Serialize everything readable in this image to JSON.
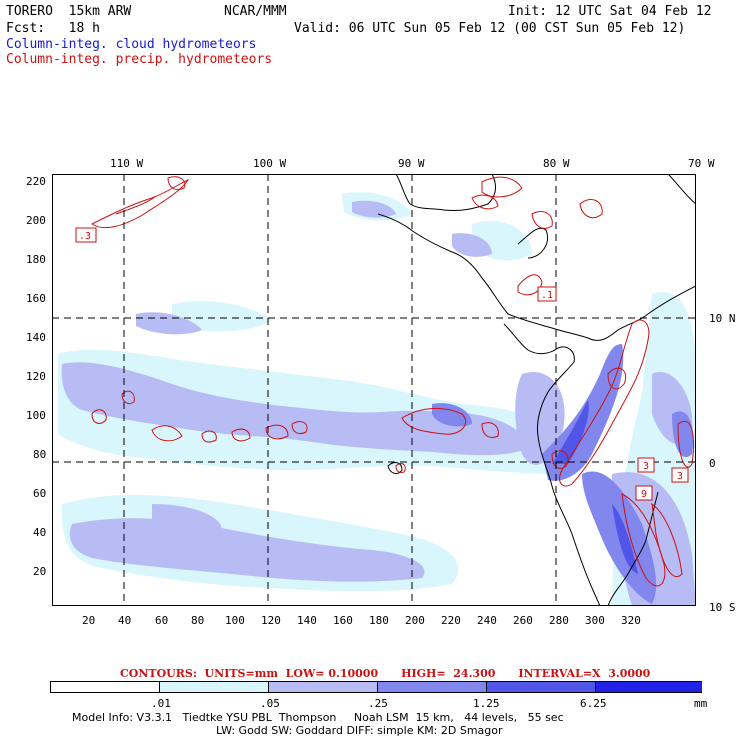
{
  "header": {
    "model": "TORERO  15km ARW",
    "org": "NCAR/MMM",
    "init": "Init: 12 UTC Sat 04 Feb 12",
    "fcst": "Fcst:   18 h",
    "valid": "Valid: 06 UTC Sun 05 Feb 12 (00 CST Sun 05 Feb 12)",
    "legend_cloud": "Column-integ. cloud hydrometeors",
    "legend_precip": "Column-integ. precip. hydrometeors"
  },
  "map": {
    "lon_labels": [
      "110 W",
      "100 W",
      "90 W",
      "80 W",
      "70 W"
    ],
    "lat_labels": [
      "10 N",
      "0",
      "10 S"
    ],
    "x_ticks": [
      "20",
      "40",
      "60",
      "80",
      "100",
      "120",
      "140",
      "160",
      "180",
      "200",
      "220",
      "240",
      "260",
      "280",
      "300",
      "320"
    ],
    "y_ticks": [
      "220",
      "200",
      "180",
      "160",
      "140",
      "120",
      "100",
      "80",
      "60",
      "40",
      "20"
    ],
    "contour_labels": [
      ".3",
      ".1",
      "3",
      "3",
      "9"
    ]
  },
  "contours": "CONTOURS:  UNITS=mm  LOW= 0.10000      HIGH=  24.300      INTERVAL=X  3.0000",
  "colorbar": {
    "labels": [
      ".01",
      ".05",
      ".25",
      "1.25",
      "6.25",
      "mm"
    ],
    "colors": [
      "#ffffff",
      "#d8f6fb",
      "#b8bcf4",
      "#8287ee",
      "#5256e8",
      "#2222e6"
    ]
  },
  "footer": {
    "line1": "Model Info: V3.3.1   Tiedtke YSU PBL  Thompson     Noah LSM  15 km,   44 levels,   55 sec",
    "line2": "LW: Godd SW: Goddard DIFF: simple KM: 2D Smagor"
  }
}
